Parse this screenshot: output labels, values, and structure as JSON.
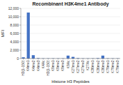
{
  "chart_data": {
    "type": "bar",
    "title": "Recombinant H3K4me1 Antibody",
    "xlabel": "Histone H3 Peptides",
    "ylabel": "MFI",
    "categories": [
      "H3(1-150)",
      "K4me1",
      "K4me2",
      "K4me3",
      "K4Ac",
      "H3(1-150)",
      "K9me1",
      "K9me2",
      "K9me3",
      "K9Ac",
      "K27me1",
      "K27me2",
      "K27me3",
      "K27Ac",
      "K36me1",
      "K36me2",
      "K36me3",
      "K79me1",
      "K79me2",
      "K79me3"
    ],
    "values": [
      300,
      11000,
      800,
      100,
      50,
      50,
      50,
      50,
      50,
      700,
      400,
      100,
      50,
      50,
      50,
      100,
      700,
      50,
      50,
      50
    ],
    "color": "#4472c4",
    "ylim": [
      0,
      12000
    ],
    "yticks": [
      0,
      {
        "value": 2000,
        "label": "2,000"
      },
      {
        "value": 4000,
        "label": "4,000"
      },
      {
        "value": 6000,
        "label": "6,000"
      },
      {
        "value": 8000,
        "label": "8,000"
      },
      {
        "value": 10000,
        "label": "10,000"
      },
      {
        "value": 12000,
        "label": "12,000"
      }
    ],
    "grid": true
  }
}
